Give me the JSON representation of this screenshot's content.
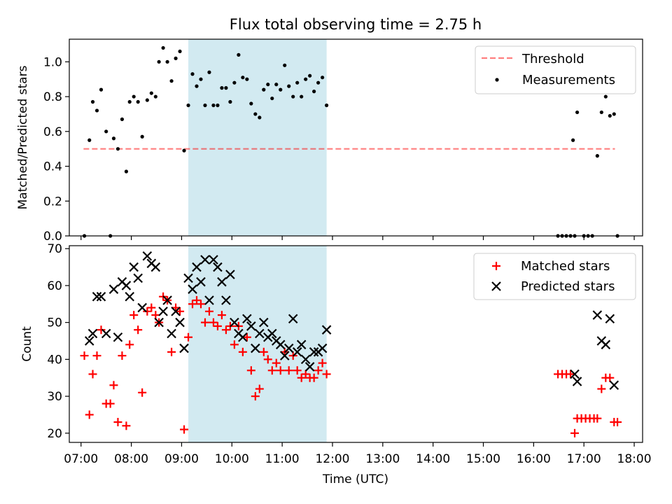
{
  "figure_title": "Flux total observing time = 2.75 h",
  "colors": {
    "shade": "#add8e6",
    "threshold": "#ff0000",
    "measurement": "#000000",
    "matched": "#ff0000",
    "predicted": "#000000"
  },
  "chart_data": [
    {
      "type": "scatter",
      "title": "Flux total observing time = 2.75 h",
      "xlabel": "",
      "ylabel": "Matched/Predicted stars",
      "xlim": [
        "06:46",
        "18:10"
      ],
      "ylim": [
        0,
        1.13
      ],
      "yticks": [
        "0.0",
        "0.2",
        "0.4",
        "0.6",
        "0.8",
        "1.0"
      ],
      "shaded_interval": [
        "09:08",
        "11:53"
      ],
      "legend_position": "top-right",
      "threshold": {
        "name": "Threshold",
        "y": 0.5,
        "x": [
          "07:03",
          "17:37"
        ],
        "style": "dashed"
      },
      "series": [
        {
          "name": "Measurements",
          "marker": "dot",
          "points": [
            [
              "07:04",
              0.0
            ],
            [
              "07:10",
              0.55
            ],
            [
              "07:14",
              0.77
            ],
            [
              "07:19",
              0.72
            ],
            [
              "07:24",
              0.84
            ],
            [
              "07:30",
              0.6
            ],
            [
              "07:35",
              0.0
            ],
            [
              "07:39",
              0.56
            ],
            [
              "07:44",
              0.5
            ],
            [
              "07:49",
              0.67
            ],
            [
              "07:54",
              0.37
            ],
            [
              "07:58",
              0.77
            ],
            [
              "08:03",
              0.8
            ],
            [
              "08:08",
              0.77
            ],
            [
              "08:13",
              0.57
            ],
            [
              "08:19",
              0.78
            ],
            [
              "08:24",
              0.82
            ],
            [
              "08:29",
              0.8
            ],
            [
              "08:33",
              1.0
            ],
            [
              "08:38",
              1.08
            ],
            [
              "08:43",
              1.0
            ],
            [
              "08:48",
              0.89
            ],
            [
              "08:53",
              1.02
            ],
            [
              "08:58",
              1.06
            ],
            [
              "09:03",
              0.49
            ],
            [
              "09:08",
              0.75
            ],
            [
              "09:13",
              0.93
            ],
            [
              "09:18",
              0.86
            ],
            [
              "09:23",
              0.9
            ],
            [
              "09:28",
              0.75
            ],
            [
              "09:33",
              0.94
            ],
            [
              "09:38",
              0.75
            ],
            [
              "09:43",
              0.75
            ],
            [
              "09:48",
              0.85
            ],
            [
              "09:53",
              0.85
            ],
            [
              "09:58",
              0.77
            ],
            [
              "10:03",
              0.88
            ],
            [
              "10:08",
              1.04
            ],
            [
              "10:13",
              0.91
            ],
            [
              "10:18",
              0.9
            ],
            [
              "10:23",
              0.76
            ],
            [
              "10:28",
              0.7
            ],
            [
              "10:33",
              0.68
            ],
            [
              "10:38",
              0.84
            ],
            [
              "10:43",
              0.87
            ],
            [
              "10:48",
              0.79
            ],
            [
              "10:53",
              0.87
            ],
            [
              "10:58",
              0.84
            ],
            [
              "11:03",
              0.98
            ],
            [
              "11:08",
              0.86
            ],
            [
              "11:13",
              0.8
            ],
            [
              "11:18",
              0.88
            ],
            [
              "11:23",
              0.8
            ],
            [
              "11:28",
              0.9
            ],
            [
              "11:33",
              0.92
            ],
            [
              "11:38",
              0.83
            ],
            [
              "11:43",
              0.88
            ],
            [
              "11:48",
              0.91
            ],
            [
              "11:53",
              0.75
            ],
            [
              "16:29",
              0.0
            ],
            [
              "16:34",
              0.0
            ],
            [
              "16:39",
              0.0
            ],
            [
              "16:44",
              0.0
            ],
            [
              "16:49",
              0.0
            ],
            [
              "16:47",
              0.55
            ],
            [
              "16:52",
              0.71
            ],
            [
              "17:00",
              0.0
            ],
            [
              "17:05",
              0.0
            ],
            [
              "17:10",
              0.0
            ],
            [
              "17:16",
              0.46
            ],
            [
              "17:21",
              0.71
            ],
            [
              "17:26",
              0.8
            ],
            [
              "17:31",
              0.69
            ],
            [
              "17:36",
              0.7
            ],
            [
              "17:40",
              0.0
            ]
          ]
        }
      ]
    },
    {
      "type": "scatter",
      "title": "",
      "xlabel": "Time (UTC)",
      "ylabel": "Count",
      "xlim": [
        "06:46",
        "18:10"
      ],
      "ylim": [
        17.5,
        70.8
      ],
      "yticks": [
        "20",
        "30",
        "40",
        "50",
        "60",
        "70"
      ],
      "xticks": [
        "07:00",
        "08:00",
        "09:00",
        "10:00",
        "11:00",
        "12:00",
        "13:00",
        "14:00",
        "15:00",
        "16:00",
        "17:00",
        "18:00"
      ],
      "shaded_interval": [
        "09:08",
        "11:53"
      ],
      "legend_position": "top-right",
      "series": [
        {
          "name": "Matched stars",
          "marker": "plus",
          "points": [
            [
              "07:04",
              41
            ],
            [
              "07:10",
              25
            ],
            [
              "07:14",
              36
            ],
            [
              "07:19",
              41
            ],
            [
              "07:24",
              48
            ],
            [
              "07:30",
              28
            ],
            [
              "07:35",
              28
            ],
            [
              "07:39",
              33
            ],
            [
              "07:44",
              23
            ],
            [
              "07:49",
              41
            ],
            [
              "07:54",
              22
            ],
            [
              "07:58",
              44
            ],
            [
              "08:03",
              52
            ],
            [
              "08:08",
              48
            ],
            [
              "08:13",
              31
            ],
            [
              "08:19",
              53
            ],
            [
              "08:24",
              54
            ],
            [
              "08:29",
              52
            ],
            [
              "08:33",
              50
            ],
            [
              "08:38",
              57
            ],
            [
              "08:43",
              56
            ],
            [
              "08:48",
              42
            ],
            [
              "08:53",
              54
            ],
            [
              "08:58",
              53
            ],
            [
              "09:03",
              21
            ],
            [
              "09:08",
              46
            ],
            [
              "09:13",
              55
            ],
            [
              "09:18",
              56
            ],
            [
              "09:23",
              55
            ],
            [
              "09:28",
              50
            ],
            [
              "09:33",
              53
            ],
            [
              "09:38",
              50
            ],
            [
              "09:43",
              49
            ],
            [
              "09:48",
              52
            ],
            [
              "09:53",
              48
            ],
            [
              "09:58",
              49
            ],
            [
              "10:03",
              44
            ],
            [
              "10:08",
              49
            ],
            [
              "10:13",
              42
            ],
            [
              "10:18",
              46
            ],
            [
              "10:23",
              37
            ],
            [
              "10:28",
              30
            ],
            [
              "10:33",
              32
            ],
            [
              "10:38",
              42
            ],
            [
              "10:43",
              40
            ],
            [
              "10:48",
              37
            ],
            [
              "10:53",
              39
            ],
            [
              "10:58",
              37
            ],
            [
              "11:03",
              42
            ],
            [
              "11:08",
              37
            ],
            [
              "11:13",
              41
            ],
            [
              "11:18",
              37
            ],
            [
              "11:23",
              35
            ],
            [
              "11:28",
              36
            ],
            [
              "11:33",
              35
            ],
            [
              "11:38",
              35
            ],
            [
              "11:43",
              37
            ],
            [
              "11:48",
              39
            ],
            [
              "11:53",
              36
            ],
            [
              "16:29",
              36
            ],
            [
              "16:34",
              36
            ],
            [
              "16:39",
              36
            ],
            [
              "16:44",
              36
            ],
            [
              "16:49",
              20
            ],
            [
              "16:52",
              24
            ],
            [
              "16:57",
              24
            ],
            [
              "17:02",
              24
            ],
            [
              "17:07",
              24
            ],
            [
              "17:12",
              24
            ],
            [
              "17:16",
              24
            ],
            [
              "17:21",
              32
            ],
            [
              "17:26",
              35
            ],
            [
              "17:31",
              35
            ],
            [
              "17:36",
              23
            ],
            [
              "17:40",
              23
            ]
          ]
        },
        {
          "name": "Predicted stars",
          "marker": "x",
          "points": [
            [
              "07:10",
              45
            ],
            [
              "07:14",
              47
            ],
            [
              "07:19",
              57
            ],
            [
              "07:24",
              57
            ],
            [
              "07:30",
              47
            ],
            [
              "07:39",
              59
            ],
            [
              "07:44",
              46
            ],
            [
              "07:49",
              61
            ],
            [
              "07:54",
              60
            ],
            [
              "07:58",
              57
            ],
            [
              "08:03",
              65
            ],
            [
              "08:08",
              62
            ],
            [
              "08:13",
              54
            ],
            [
              "08:19",
              68
            ],
            [
              "08:24",
              66
            ],
            [
              "08:29",
              65
            ],
            [
              "08:33",
              50
            ],
            [
              "08:38",
              53
            ],
            [
              "08:43",
              56
            ],
            [
              "08:48",
              47
            ],
            [
              "08:53",
              53
            ],
            [
              "08:58",
              50
            ],
            [
              "09:03",
              43
            ],
            [
              "09:08",
              62
            ],
            [
              "09:13",
              59
            ],
            [
              "09:18",
              65
            ],
            [
              "09:23",
              61
            ],
            [
              "09:28",
              67
            ],
            [
              "09:33",
              56
            ],
            [
              "09:38",
              67
            ],
            [
              "09:43",
              65
            ],
            [
              "09:48",
              61
            ],
            [
              "09:53",
              56
            ],
            [
              "09:58",
              63
            ],
            [
              "10:03",
              50
            ],
            [
              "10:08",
              47
            ],
            [
              "10:13",
              46
            ],
            [
              "10:18",
              51
            ],
            [
              "10:23",
              49
            ],
            [
              "10:28",
              43
            ],
            [
              "10:33",
              47
            ],
            [
              "10:38",
              50
            ],
            [
              "10:43",
              46
            ],
            [
              "10:48",
              47
            ],
            [
              "10:53",
              45
            ],
            [
              "10:58",
              44
            ],
            [
              "11:03",
              41
            ],
            [
              "11:08",
              43
            ],
            [
              "11:13",
              51
            ],
            [
              "11:18",
              42
            ],
            [
              "11:23",
              44
            ],
            [
              "11:28",
              40
            ],
            [
              "11:33",
              38
            ],
            [
              "11:38",
              42
            ],
            [
              "11:43",
              42
            ],
            [
              "11:48",
              43
            ],
            [
              "11:53",
              48
            ],
            [
              "16:49",
              36
            ],
            [
              "16:52",
              34
            ],
            [
              "17:16",
              52
            ],
            [
              "17:21",
              45
            ],
            [
              "17:26",
              44
            ],
            [
              "17:31",
              51
            ],
            [
              "17:36",
              33
            ]
          ]
        }
      ]
    }
  ]
}
